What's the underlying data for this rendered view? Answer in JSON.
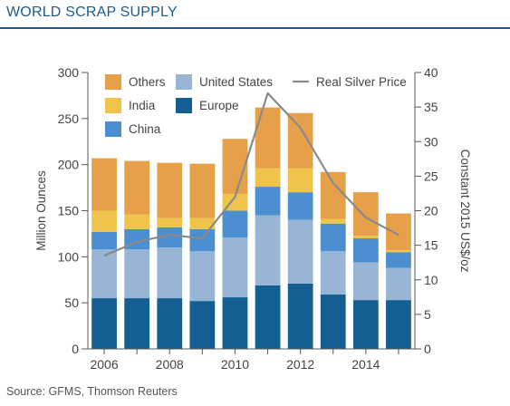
{
  "header": {
    "title": "WORLD SCRAP SUPPLY"
  },
  "footer": {
    "source": "Source: GFMS, Thomson Reuters"
  },
  "colors": {
    "Others": "#e6a04a",
    "India": "#f0c44c",
    "China": "#4b8fd0",
    "United States": "#98b5d6",
    "Europe": "#135f94",
    "Real Silver Price": "#8a8a8a",
    "axis": "#595959",
    "text": "#444444"
  },
  "chart_data": {
    "type": "bar",
    "stacked": true,
    "years": [
      2006,
      2007,
      2008,
      2009,
      2010,
      2011,
      2012,
      2013,
      2014,
      2015
    ],
    "x_tick_labels": [
      "2006",
      "2008",
      "2010",
      "2012",
      "2014"
    ],
    "ylabel": "Million Ounces",
    "y2label": "Constant 2015 US$/oz",
    "ylim": [
      0,
      300
    ],
    "y2lim": [
      0,
      40
    ],
    "y_ticks": [
      "0",
      "50",
      "100",
      "150",
      "200",
      "250",
      "300"
    ],
    "y2_ticks": [
      "0",
      "5",
      "10",
      "15",
      "20",
      "25",
      "30",
      "35",
      "40"
    ],
    "legend_position": "top",
    "series": [
      {
        "name": "Europe",
        "values": [
          55,
          55,
          55,
          52,
          56,
          69,
          71,
          59,
          53,
          53
        ]
      },
      {
        "name": "United States",
        "values": [
          53,
          53,
          55,
          54,
          65,
          76,
          69,
          47,
          41,
          35
        ]
      },
      {
        "name": "China",
        "values": [
          19,
          22,
          22,
          24,
          29,
          31,
          30,
          30,
          26,
          17
        ]
      },
      {
        "name": "India",
        "values": [
          23,
          16,
          10,
          12,
          18,
          20,
          26,
          5,
          3,
          2
        ]
      },
      {
        "name": "Others",
        "values": [
          57,
          58,
          60,
          59,
          60,
          66,
          60,
          51,
          47,
          40
        ]
      }
    ],
    "line": {
      "name": "Real Silver Price",
      "axis": "right",
      "values": [
        13.5,
        15.5,
        16.5,
        16.0,
        22.0,
        37.0,
        32.0,
        24.0,
        19.0,
        16.5
      ]
    },
    "legend": [
      "Others",
      "United States",
      "Real Silver Price",
      "India",
      "Europe",
      "China"
    ]
  }
}
